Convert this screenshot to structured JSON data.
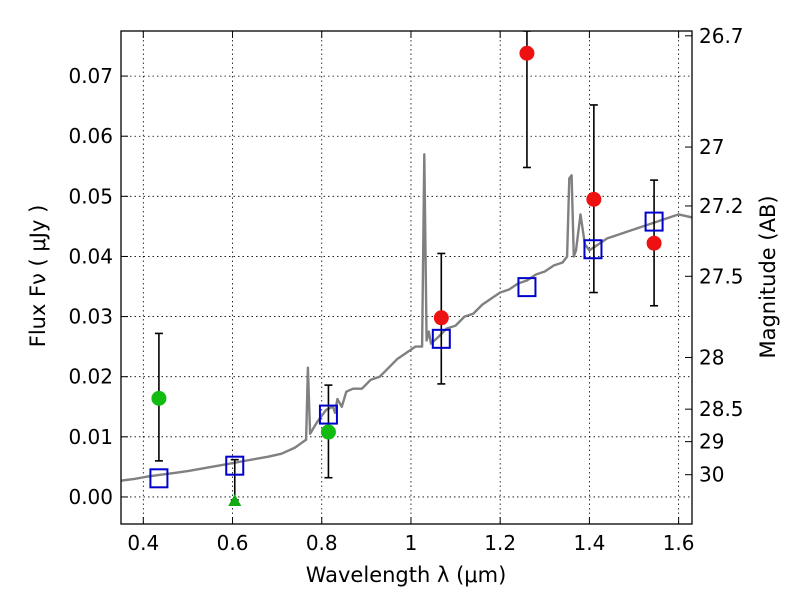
{
  "chart_data": {
    "type": "scatter",
    "xlabel": "Wavelength  λ (μm)",
    "ylabel": "Flux  Fν  ( μJy )",
    "ylabel_right": "Magnitude (AB)",
    "xlim": [
      0.35,
      1.63
    ],
    "ylim": [
      -0.0045,
      0.0775
    ],
    "grid": true,
    "x_ticks": [
      0.4,
      0.6,
      0.8,
      1.0,
      1.2,
      1.4,
      1.6
    ],
    "x_tick_labels": [
      "0.4",
      "0.6",
      "0.8",
      "1",
      "1.2",
      "1.4",
      "1.6"
    ],
    "y_ticks": [
      0.0,
      0.01,
      0.02,
      0.03,
      0.04,
      0.05,
      0.06,
      0.07
    ],
    "y_tick_labels": [
      "0.00",
      "0.01",
      "0.02",
      "0.03",
      "0.04",
      "0.05",
      "0.06",
      "0.07"
    ],
    "right_ticks": [
      {
        "label": "26.7",
        "flux": 0.0767
      },
      {
        "label": "27",
        "flux": 0.0582
      },
      {
        "label": "27.2",
        "flux": 0.0484
      },
      {
        "label": "27.5",
        "flux": 0.0367
      },
      {
        "label": "28",
        "flux": 0.0232
      },
      {
        "label": "28.5",
        "flux": 0.0146
      },
      {
        "label": "29",
        "flux": 0.0092
      },
      {
        "label": "30",
        "flux": 0.0037
      }
    ],
    "series": [
      {
        "name": "SED model",
        "kind": "line",
        "color": "#808080",
        "x": [
          0.35,
          0.38,
          0.41,
          0.44,
          0.47,
          0.5,
          0.53,
          0.56,
          0.59,
          0.62,
          0.65,
          0.68,
          0.71,
          0.74,
          0.755,
          0.765,
          0.769,
          0.774,
          0.79,
          0.81,
          0.825,
          0.83,
          0.835,
          0.845,
          0.855,
          0.87,
          0.89,
          0.91,
          0.93,
          0.95,
          0.97,
          0.99,
          1.01,
          1.025,
          1.03,
          1.035,
          1.04,
          1.045,
          1.06,
          1.08,
          1.1,
          1.12,
          1.14,
          1.16,
          1.18,
          1.2,
          1.22,
          1.24,
          1.26,
          1.28,
          1.3,
          1.32,
          1.34,
          1.35,
          1.355,
          1.36,
          1.365,
          1.37,
          1.38,
          1.39,
          1.4,
          1.42,
          1.44,
          1.46,
          1.48,
          1.5,
          1.52,
          1.54,
          1.56,
          1.58,
          1.6,
          1.63
        ],
        "y": [
          0.0027,
          0.003,
          0.0034,
          0.0037,
          0.004,
          0.0043,
          0.0047,
          0.0051,
          0.0055,
          0.0059,
          0.0063,
          0.0067,
          0.0072,
          0.0082,
          0.009,
          0.0095,
          0.0215,
          0.0105,
          0.0125,
          0.0145,
          0.015,
          0.014,
          0.0163,
          0.015,
          0.0175,
          0.018,
          0.018,
          0.0195,
          0.02,
          0.0215,
          0.023,
          0.024,
          0.025,
          0.025,
          0.057,
          0.026,
          0.0275,
          0.0255,
          0.0265,
          0.028,
          0.0285,
          0.03,
          0.0305,
          0.032,
          0.033,
          0.034,
          0.0345,
          0.0355,
          0.036,
          0.037,
          0.0375,
          0.0385,
          0.039,
          0.04,
          0.053,
          0.0535,
          0.04,
          0.041,
          0.047,
          0.042,
          0.041,
          0.042,
          0.043,
          0.0435,
          0.044,
          0.0445,
          0.045,
          0.0455,
          0.046,
          0.0465,
          0.047,
          0.0465
        ]
      },
      {
        "name": "Model photometry",
        "kind": "marker",
        "marker": "square",
        "color": "#0000cc",
        "x": [
          0.435,
          0.605,
          0.815,
          1.068,
          1.26,
          1.408,
          1.545
        ],
        "y": [
          0.0031,
          0.0052,
          0.0137,
          0.0263,
          0.0349,
          0.0412,
          0.0458
        ]
      },
      {
        "name": "Observed (red)",
        "kind": "marker",
        "marker": "circle",
        "color": "#ee1111",
        "x": [
          1.068,
          1.26,
          1.41,
          1.545
        ],
        "y": [
          0.0298,
          0.0738,
          0.0495,
          0.0422
        ],
        "err_low": [
          0.0188,
          0.0548,
          0.034,
          0.0318
        ],
        "err_high": [
          0.0405,
          0.0775,
          0.0652,
          0.0527
        ]
      },
      {
        "name": "Observed (green)",
        "kind": "marker",
        "marker": "circle",
        "color": "#11bb11",
        "x": [
          0.435,
          0.815
        ],
        "y": [
          0.0164,
          0.0108
        ],
        "err_low": [
          0.006,
          0.0032
        ],
        "err_high": [
          0.0272,
          0.0186
        ]
      },
      {
        "name": "Upper limit",
        "kind": "marker",
        "marker": "triangle",
        "color": "#11aa11",
        "x": [
          0.605
        ],
        "y": [
          -0.0005
        ],
        "err_low": [
          -0.0005
        ],
        "err_high": [
          0.0062
        ]
      }
    ]
  }
}
